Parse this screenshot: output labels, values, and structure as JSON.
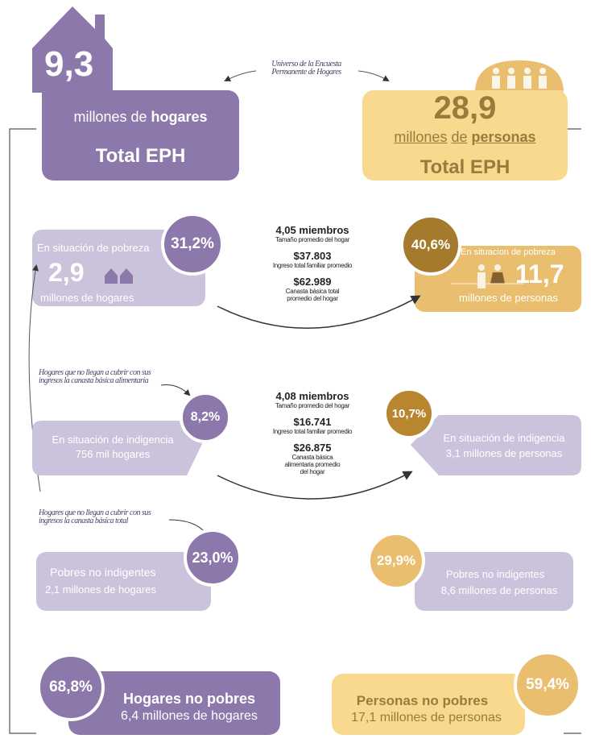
{
  "universe_note": "Universo de la Encuesta Permanente de Hogares",
  "households": {
    "total": {
      "value": "9,3",
      "unit_prefix": "millones de",
      "unit": "hogares",
      "label": "Total EPH"
    },
    "poverty": {
      "label": "En situación de pobreza",
      "value": "2,9",
      "unit": "millones de hogares",
      "share": "31,2%"
    },
    "indigence_note": "Hogares que no llegan a cubrir con sus ingresos la canasta básica alimentaria",
    "indigence": {
      "label": "En situación de indigencia",
      "detail": "756 mil hogares",
      "share": "8,2%"
    },
    "non_indigent_note": "Hogares que no llegan a cubrir con sus ingresos la canasta básica total",
    "non_indigent_poor": {
      "label": "Pobres no indigentes",
      "detail": "2,1 millones de hogares",
      "share": "23,0%"
    },
    "non_poor": {
      "label": "Hogares no pobres",
      "detail": "6,4 millones de hogares",
      "share": "68,8%"
    }
  },
  "persons": {
    "total": {
      "value": "28,9",
      "unit_prefix": "millones",
      "unit_mid": "de",
      "unit": "personas",
      "label": "Total EPH"
    },
    "poverty": {
      "label": "En situacion de pobreza",
      "value": "11,7",
      "unit": "millones de personas",
      "share": "40,6%"
    },
    "indigence": {
      "label": "En situación de indigencia",
      "detail": "3,1 millones de personas",
      "share": "10,7%"
    },
    "non_indigent_poor": {
      "label": "Pobres no indigentes",
      "detail": "8,6 millones de personas",
      "share": "29,9%"
    },
    "non_poor": {
      "label": "Personas no pobres",
      "detail": "17,1 millones de personas",
      "share": "59,4%"
    }
  },
  "poverty_stats": [
    {
      "value": "4,05 miembros",
      "label": "Tamaño promedio del hogar"
    },
    {
      "value": "$37.803",
      "label": "Ingreso total familiar promedio"
    },
    {
      "value": "$62.989",
      "label": "Canasta básica total promedio del hogar"
    }
  ],
  "indigence_stats": [
    {
      "value": "4,08 miembros",
      "label": "Tamaño promedio del hogar"
    },
    {
      "value": "$16.741",
      "label": "Ingreso total familiar promedio"
    },
    {
      "value": "$26.875",
      "label": "Canasta básica alimentaria promedio del hogar"
    }
  ]
}
